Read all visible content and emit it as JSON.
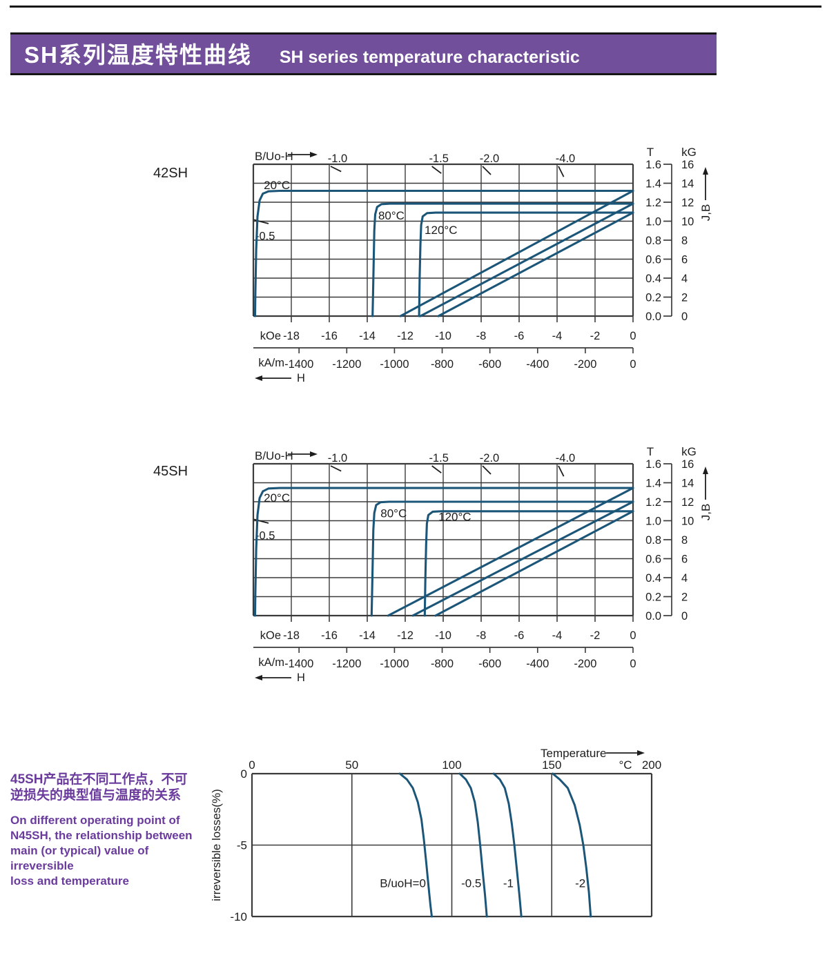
{
  "header": {
    "title_zh": "SH系列温度特性曲线",
    "title_en": "SH  series temperature characteristic"
  },
  "colors": {
    "bar": "#714f9a",
    "curve": "#1b5679",
    "grid": "#3a3a3a",
    "ink": "#1d1d1d",
    "purple_text": "#6a3b9c"
  },
  "side_note": {
    "zh_lines": [
      "45SH产品在不同工作点，不可",
      "逆损失的典型值与温度的关系"
    ],
    "en_lines": [
      "On different operating point of",
      "N45SH,  the relationship between",
      "main (or typical) value of irreversible",
      "loss and temperature"
    ]
  },
  "chart_data": [
    {
      "type": "line",
      "id": "demag_42SH",
      "title": "42SH",
      "pc_axis_label": "B/Uo-H",
      "load_lines": [
        {
          "label": "-1.0",
          "value": -1.0
        },
        {
          "label": "-1.5",
          "value": -1.5
        },
        {
          "label": "-2.0",
          "value": -2.0
        },
        {
          "label": "-4.0",
          "value": -4.0
        }
      ],
      "load_line_left": {
        "label": "-0.5",
        "value": -0.5,
        "B_at_left_edge": 1.0
      },
      "x_axis": {
        "range_kOe": [
          -20,
          0
        ],
        "primary_unit": "kOe",
        "primary_ticks": [
          -18,
          -16,
          -14,
          -12,
          -10,
          -8,
          -6,
          -4,
          -2,
          0
        ],
        "secondary_unit": "kA/m",
        "secondary_ticks": [
          -1400,
          -1200,
          -1000,
          -800,
          -600,
          -400,
          -200,
          0
        ],
        "arrow_label": "H"
      },
      "y_axis": {
        "range_T": [
          0,
          1.6
        ],
        "left_unit": "T",
        "left_ticks": [
          "1.6",
          "1.4",
          "1.2",
          "1.0",
          "0.8",
          "0.6",
          "0.4",
          "0.2",
          "0.0"
        ],
        "right_unit": "kG",
        "right_ticks": [
          "16",
          "14",
          "12",
          "10",
          "8",
          "6",
          "4",
          "2",
          "0"
        ],
        "label": "J,B"
      },
      "series": [
        {
          "name": "J_20C",
          "points": [
            [
              0,
              1.32
            ],
            [
              -18.6,
              1.32
            ],
            [
              -19.2,
              1.315
            ],
            [
              -19.5,
              1.29
            ],
            [
              -19.67,
              1.22
            ],
            [
              -19.78,
              1.05
            ],
            [
              -19.85,
              0.7
            ],
            [
              -19.9,
              0.2
            ],
            [
              -19.91,
              0
            ]
          ]
        },
        {
          "name": "B_20C",
          "points": [
            [
              0,
              1.32
            ],
            [
              -12.25,
              0
            ]
          ]
        },
        {
          "name": "J_80C",
          "points": [
            [
              0,
              1.185
            ],
            [
              -12.8,
              1.185
            ],
            [
              -13.25,
              1.18
            ],
            [
              -13.48,
              1.15
            ],
            [
              -13.58,
              1.07
            ],
            [
              -13.63,
              0.9
            ],
            [
              -13.66,
              0.6
            ],
            [
              -13.7,
              0.2
            ],
            [
              -13.72,
              0
            ]
          ]
        },
        {
          "name": "B_80C",
          "points": [
            [
              0,
              1.185
            ],
            [
              -11.2,
              0
            ]
          ]
        },
        {
          "name": "J_120C",
          "points": [
            [
              0,
              1.09
            ],
            [
              -10.4,
              1.09
            ],
            [
              -10.85,
              1.085
            ],
            [
              -11.08,
              1.05
            ],
            [
              -11.16,
              0.96
            ],
            [
              -11.2,
              0.75
            ],
            [
              -11.24,
              0.4
            ],
            [
              -11.27,
              0
            ]
          ]
        },
        {
          "name": "B_120C",
          "points": [
            [
              0,
              1.09
            ],
            [
              -10.25,
              0
            ]
          ]
        }
      ],
      "curve_labels": [
        {
          "text": "20°C",
          "H": -19.45,
          "B": 1.34
        },
        {
          "text": "80°C",
          "H": -13.42,
          "B": 1.02
        },
        {
          "text": "120°C",
          "H": -10.98,
          "B": 0.865
        }
      ]
    },
    {
      "type": "line",
      "id": "demag_45SH",
      "title": "45SH",
      "pc_axis_label": "B/Uo-H",
      "load_lines": [
        {
          "label": "-1.0",
          "value": -1.0
        },
        {
          "label": "-1.5",
          "value": -1.5
        },
        {
          "label": "-2.0",
          "value": -2.0
        },
        {
          "label": "-4.0",
          "value": -4.0
        }
      ],
      "load_line_left": {
        "label": "-0.5",
        "value": -0.5,
        "B_at_left_edge": 1.0
      },
      "x_axis": {
        "range_kOe": [
          -20,
          0
        ],
        "primary_unit": "kOe",
        "primary_ticks": [
          -18,
          -16,
          -14,
          -12,
          -10,
          -8,
          -6,
          -4,
          -2,
          0
        ],
        "secondary_unit": "kA/m",
        "secondary_ticks": [
          -1400,
          -1200,
          -1000,
          -800,
          -600,
          -400,
          -200,
          0
        ],
        "arrow_label": "H"
      },
      "y_axis": {
        "range_T": [
          0,
          1.6
        ],
        "left_unit": "T",
        "left_ticks": [
          "1.6",
          "1.4",
          "1.2",
          "1.0",
          "0.8",
          "0.6",
          "0.4",
          "0.2",
          "0.0"
        ],
        "right_unit": "kG",
        "right_ticks": [
          "16",
          "14",
          "12",
          "10",
          "8",
          "6",
          "4",
          "2",
          "0"
        ],
        "label": "J,B"
      },
      "series": [
        {
          "name": "J_20C",
          "points": [
            [
              0,
              1.345
            ],
            [
              -18.6,
              1.345
            ],
            [
              -19.2,
              1.34
            ],
            [
              -19.5,
              1.31
            ],
            [
              -19.67,
              1.24
            ],
            [
              -19.78,
              1.06
            ],
            [
              -19.85,
              0.7
            ],
            [
              -19.9,
              0.2
            ],
            [
              -19.91,
              0
            ]
          ]
        },
        {
          "name": "B_20C",
          "points": [
            [
              0,
              1.345
            ],
            [
              -12.9,
              0
            ]
          ]
        },
        {
          "name": "J_80C",
          "points": [
            [
              0,
              1.2
            ],
            [
              -12.85,
              1.2
            ],
            [
              -13.3,
              1.195
            ],
            [
              -13.53,
              1.165
            ],
            [
              -13.63,
              1.08
            ],
            [
              -13.68,
              0.9
            ],
            [
              -13.71,
              0.6
            ],
            [
              -13.75,
              0.2
            ],
            [
              -13.77,
              0
            ]
          ]
        },
        {
          "name": "B_80C",
          "points": [
            [
              0,
              1.2
            ],
            [
              -11.6,
              0
            ]
          ]
        },
        {
          "name": "J_120C",
          "points": [
            [
              0,
              1.1
            ],
            [
              -10.1,
              1.1
            ],
            [
              -10.55,
              1.095
            ],
            [
              -10.78,
              1.06
            ],
            [
              -10.86,
              0.97
            ],
            [
              -10.9,
              0.75
            ],
            [
              -10.94,
              0.4
            ],
            [
              -10.97,
              0
            ]
          ]
        },
        {
          "name": "B_120C",
          "points": [
            [
              0,
              1.1
            ],
            [
              -10.4,
              0
            ]
          ]
        }
      ],
      "curve_labels": [
        {
          "text": "20°C",
          "H": -19.45,
          "B": 1.2
        },
        {
          "text": "80°C",
          "H": -13.3,
          "B": 1.035
        },
        {
          "text": "120°C",
          "H": -10.25,
          "B": 1.0
        }
      ]
    },
    {
      "type": "line",
      "id": "irreversible_loss",
      "x_axis": {
        "label": "Temperature",
        "unit": "°C",
        "ticks": [
          0,
          50,
          100,
          150,
          200
        ],
        "range": [
          0,
          200
        ]
      },
      "y_axis": {
        "label": "irreversible  losses(%)",
        "ticks": [
          "0",
          "-5",
          "-10"
        ],
        "tick_values": [
          0,
          -5,
          -10
        ],
        "range": [
          -10,
          0
        ]
      },
      "series": [
        {
          "name": "B/uoH=0",
          "label": "B/uoH=0",
          "label_T": 64,
          "label_loss": -7.95,
          "points": [
            [
              74,
              0
            ],
            [
              77.5,
              -0.4
            ],
            [
              80.5,
              -1.0
            ],
            [
              83,
              -2.0
            ],
            [
              84.8,
              -3.2
            ],
            [
              86,
              -4.6
            ],
            [
              87.2,
              -6.2
            ],
            [
              88.3,
              -7.8
            ],
            [
              89.3,
              -9.2
            ],
            [
              90,
              -10
            ]
          ]
        },
        {
          "name": "-0.5",
          "label": "-0.5",
          "label_T": 104.7,
          "label_loss": -7.95,
          "points": [
            [
              104,
              0
            ],
            [
              107,
              -0.4
            ],
            [
              109.5,
              -1.0
            ],
            [
              111.5,
              -2.0
            ],
            [
              113,
              -3.4
            ],
            [
              114.2,
              -5
            ],
            [
              115.4,
              -6.8
            ],
            [
              116.6,
              -8.5
            ],
            [
              117.5,
              -10
            ]
          ]
        },
        {
          "name": "-1",
          "label": "-1",
          "label_T": 125.7,
          "label_loss": -7.95,
          "points": [
            [
              121,
              0
            ],
            [
              124,
              -0.4
            ],
            [
              126.5,
              -1.0
            ],
            [
              128.5,
              -2.1
            ],
            [
              130,
              -3.5
            ],
            [
              131.3,
              -5
            ],
            [
              132.6,
              -6.8
            ],
            [
              133.8,
              -8.5
            ],
            [
              134.8,
              -10
            ]
          ]
        },
        {
          "name": "-2",
          "label": "-2",
          "label_T": 161.7,
          "label_loss": -7.95,
          "points": [
            [
              150.5,
              0
            ],
            [
              154,
              -0.4
            ],
            [
              158,
              -1.0
            ],
            [
              161.5,
              -2.2
            ],
            [
              164,
              -3.6
            ],
            [
              165.8,
              -5
            ],
            [
              167.3,
              -6.6
            ],
            [
              168.6,
              -8.3
            ],
            [
              169.5,
              -10
            ]
          ]
        }
      ]
    }
  ]
}
